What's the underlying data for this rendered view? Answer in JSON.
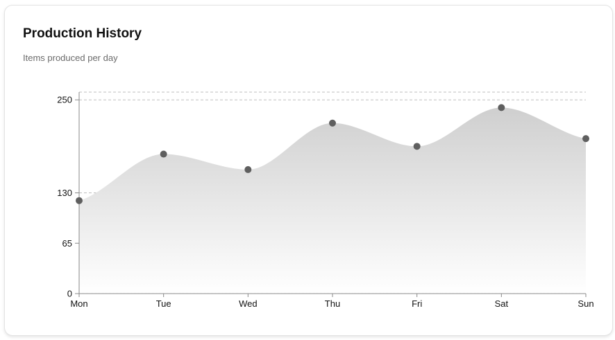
{
  "card": {
    "title": "Production History",
    "subtitle": "Items produced per day"
  },
  "colors": {
    "area_top": "#cfcfcf",
    "area_bottom": "#ffffff",
    "point": "#5f5f5f",
    "axis": "#888888",
    "grid": "#bdbdbd"
  },
  "chart_data": {
    "type": "area",
    "title": "Production History",
    "subtitle": "Items produced per day",
    "categories": [
      "Mon",
      "Tue",
      "Wed",
      "Thu",
      "Fri",
      "Sat",
      "Sun"
    ],
    "series": [
      {
        "values": [
          120,
          180,
          160,
          220,
          190,
          240,
          200
        ]
      }
    ],
    "yticks": [
      0,
      65,
      130,
      250
    ],
    "ylim": [
      0,
      260
    ],
    "grid": true,
    "smooth": true
  }
}
